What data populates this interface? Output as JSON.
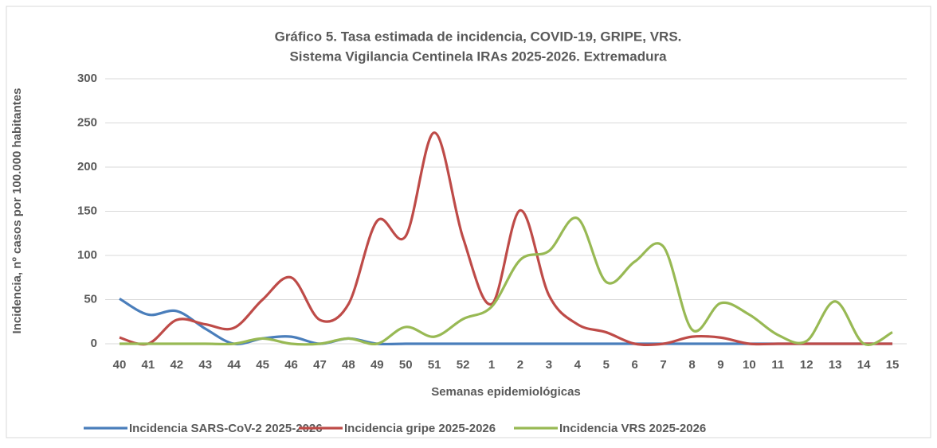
{
  "chart_data": {
    "type": "line",
    "title": [
      "Gráfico 5. Tasa estimada de incidencia, COVID-19, GRIPE, VRS.",
      "Sistema Vigilancia Centinela IRAs 2025-2026. Extremadura"
    ],
    "x_label": "Semanas epidemiológicas",
    "y_label": "Incidencia, nº casos por 100.000 habitantes",
    "categories": [
      "40",
      "41",
      "42",
      "43",
      "44",
      "45",
      "46",
      "47",
      "48",
      "49",
      "50",
      "51",
      "52",
      "1",
      "2",
      "3",
      "4",
      "5",
      "6",
      "7",
      "8",
      "9",
      "10",
      "11",
      "12",
      "13",
      "14",
      "15"
    ],
    "series": [
      {
        "name": "Incidencia SARS-CoV-2 2025-2026",
        "color": "#4a7ebb",
        "values": [
          51,
          33,
          37,
          17,
          0,
          6,
          8,
          0,
          6,
          0,
          0,
          0,
          0,
          0,
          0,
          0,
          0,
          0,
          0,
          0,
          0,
          0,
          0,
          0,
          0,
          0,
          0,
          0
        ]
      },
      {
        "name": "Incidencia gripe 2025-2026",
        "color": "#be4b48",
        "values": [
          7,
          0,
          27,
          22,
          18,
          50,
          75,
          27,
          45,
          139,
          122,
          239,
          120,
          45,
          151,
          55,
          22,
          13,
          0,
          0,
          8,
          7,
          0,
          0,
          0,
          0,
          0,
          0
        ]
      },
      {
        "name": "Incidencia VRS 2025-2026",
        "color": "#98b954",
        "values": [
          0,
          0,
          0,
          0,
          0,
          6,
          0,
          0,
          6,
          0,
          19,
          8,
          28,
          42,
          95,
          105,
          142,
          70,
          93,
          110,
          16,
          46,
          33,
          10,
          3,
          48,
          0,
          13
        ]
      }
    ],
    "ylim": [
      0,
      300
    ],
    "yticks": [
      0,
      50,
      100,
      150,
      200,
      250,
      300
    ],
    "grid": true,
    "smooth": true,
    "legend": "bottom"
  }
}
